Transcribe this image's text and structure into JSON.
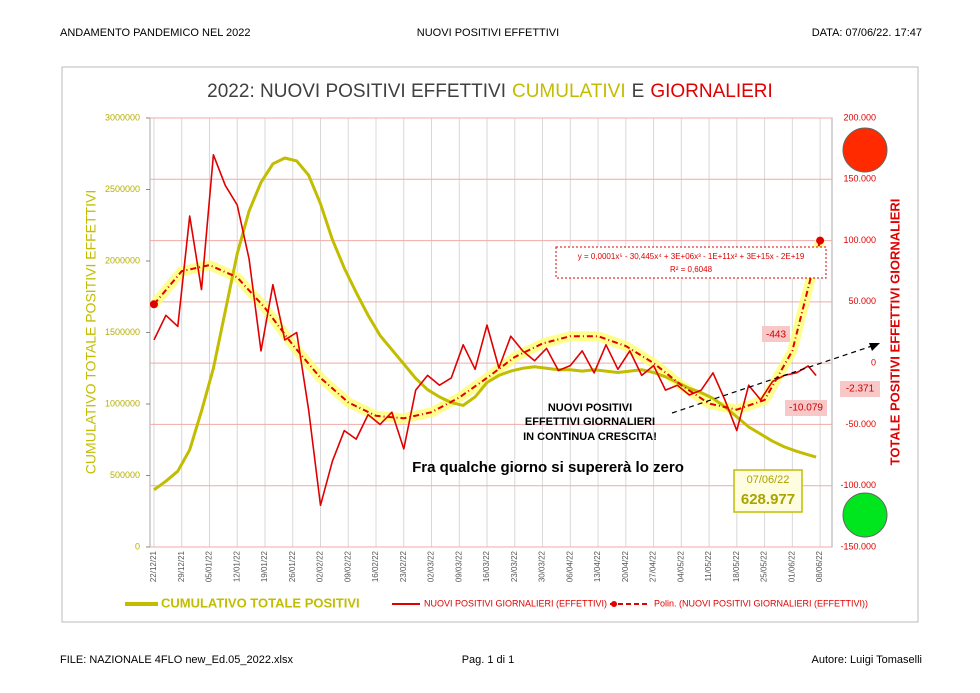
{
  "header": {
    "left": "ANDAMENTO PANDEMICO NEL 2022",
    "center": "NUOVI POSITIVI EFFETTIVI",
    "right": "DATA: 07/06/22. 17:47"
  },
  "footer": {
    "left": "FILE: NAZIONALE 4FLO new_Ed.05_2022.xlsx",
    "center": "Pag.  1  di  1",
    "right": "Autore: Luigi Tomaselli"
  },
  "chart_data": {
    "type": "line",
    "title_parts": [
      {
        "text": "2022: NUOVI POSITIVI  EFFETTIVI",
        "color": "#404040"
      },
      {
        "text": "CUMULATIVI",
        "color": "#c2bd00"
      },
      {
        "text": "E",
        "color": "#404040"
      },
      {
        "text": "GIORNALIERI",
        "color": "#e00000"
      }
    ],
    "y_label": "CUMULATIVO TOTALE POSITIVI EFFETTIVI",
    "y2_label": "TOTALE POSITIVI  EFFETTIVI GIORNALIERI",
    "x": [
      "22/12/21",
      "25/12/21",
      "28/12/21",
      "31/12/21",
      "03/01/22",
      "06/01/22",
      "09/01/22",
      "12/01/22",
      "15/01/22",
      "18/01/22",
      "21/01/22",
      "24/01/22",
      "27/01/22",
      "30/01/22",
      "02/02/22",
      "05/02/22",
      "08/02/22",
      "11/02/22",
      "14/02/22",
      "17/02/22",
      "20/02/22",
      "23/02/22",
      "26/02/22",
      "01/03/22",
      "04/03/22",
      "07/03/22",
      "10/03/22",
      "13/03/22",
      "16/03/22",
      "19/03/22",
      "22/03/22",
      "25/03/22",
      "28/03/22",
      "31/03/22",
      "03/04/22",
      "06/04/22",
      "09/04/22",
      "12/04/22",
      "15/04/22",
      "18/04/22",
      "21/04/22",
      "24/04/22",
      "27/04/22",
      "30/04/22",
      "03/05/22",
      "06/05/22",
      "09/05/22",
      "12/05/22",
      "15/05/22",
      "18/05/22",
      "21/05/22",
      "24/05/22",
      "27/05/22",
      "30/05/22",
      "02/06/22",
      "05/06/22",
      "07/06/22"
    ],
    "xlim": [
      "21/12/21",
      "11/06/22"
    ],
    "xticks": [
      "22/12/21",
      "29/12/21",
      "05/01/22",
      "12/01/22",
      "19/01/22",
      "26/01/22",
      "02/02/22",
      "09/02/22",
      "16/02/22",
      "23/02/22",
      "02/03/22",
      "09/03/22",
      "16/03/22",
      "23/03/22",
      "30/03/22",
      "06/04/22",
      "13/04/22",
      "20/04/22",
      "27/04/22",
      "04/05/22",
      "11/05/22",
      "18/05/22",
      "25/05/22",
      "01/06/22",
      "08/06/22"
    ],
    "ylim": [
      0,
      3000000
    ],
    "yticks": [
      0,
      500000,
      1000000,
      1500000,
      2000000,
      2500000,
      3000000
    ],
    "y2lim": [
      -150000,
      200000
    ],
    "y2ticks": [
      {
        "value": -150000,
        "label": "-150.000"
      },
      {
        "value": -100000,
        "label": "-100.000"
      },
      {
        "value": -50000,
        "label": "-50.000"
      },
      0,
      {
        "value": 50000,
        "label": "50.000"
      },
      {
        "value": 100000,
        "label": "100.000"
      },
      {
        "value": 150000,
        "label": "150.000"
      },
      {
        "value": 200000,
        "label": "200.000"
      }
    ],
    "grid": true,
    "series": [
      {
        "name": "CUMULATIVO TOTALE POSITIVI",
        "color": "#c2bd00",
        "axis": "y",
        "values": [
          400000,
          460000,
          530000,
          680000,
          950000,
          1250000,
          1650000,
          2050000,
          2350000,
          2550000,
          2680000,
          2720000,
          2700000,
          2600000,
          2400000,
          2150000,
          1950000,
          1780000,
          1620000,
          1480000,
          1380000,
          1280000,
          1180000,
          1100000,
          1050000,
          1010000,
          990000,
          1050000,
          1150000,
          1200000,
          1230000,
          1250000,
          1260000,
          1250000,
          1240000,
          1240000,
          1230000,
          1240000,
          1230000,
          1220000,
          1230000,
          1240000,
          1220000,
          1190000,
          1150000,
          1110000,
          1080000,
          1040000,
          980000,
          910000,
          840000,
          790000,
          740000,
          700000,
          670000,
          645000,
          628977
        ],
        "last_value_label": "628.977"
      },
      {
        "name": "NUOVI POSITIVI GIORNALIERI (EFFETTIVI)",
        "color": "#e00000",
        "axis": "y2",
        "values": [
          19000,
          39000,
          30000,
          120000,
          60000,
          170000,
          145000,
          129000,
          85000,
          10000,
          64000,
          19000,
          25000,
          -38000,
          -116000,
          -80000,
          -55000,
          -62000,
          -42000,
          -50000,
          -40000,
          -70000,
          -22000,
          -10000,
          -18000,
          -12000,
          15000,
          -5000,
          31000,
          -4000,
          22000,
          10000,
          2000,
          12000,
          -6000,
          -2000,
          10000,
          -8000,
          15000,
          -5000,
          10000,
          -10000,
          -2000,
          -22000,
          -18000,
          -26000,
          -22000,
          -8000,
          -30000,
          -55000,
          -18000,
          -30000,
          -15000,
          -10000,
          -8000,
          -2371,
          -10079
        ]
      },
      {
        "name": "Polin. (NUOVI POSITIVI GIORNALIERI (EFFETTIVI))",
        "color": "#e00000",
        "axis": "y2",
        "x": [
          "22/12/21",
          "29/12/21",
          "05/01/22",
          "12/01/22",
          "19/01/22",
          "26/01/22",
          "02/02/22",
          "09/02/22",
          "16/02/22",
          "23/02/22",
          "02/03/22",
          "09/03/22",
          "16/03/22",
          "23/03/22",
          "30/03/22",
          "06/04/22",
          "13/04/22",
          "20/04/22",
          "27/04/22",
          "04/05/22",
          "11/05/22",
          "18/05/22",
          "25/05/22",
          "01/06/22",
          "08/06/22"
        ],
        "values": [
          48000,
          75000,
          80000,
          70000,
          45000,
          15000,
          -12000,
          -32000,
          -43000,
          -45000,
          -40000,
          -28000,
          -12000,
          5000,
          16000,
          22000,
          22000,
          14000,
          0,
          -18000,
          -33000,
          -38000,
          -30000,
          10000,
          100000
        ]
      }
    ],
    "formula": "y = 0,0001x⁵ - 30,445x⁴ + 3E+06x³ - 1E+11x² + 3E+15x - 2E+19",
    "r_squared": "R² = 0,6048",
    "annotations": [
      "-443",
      "-2.371",
      "-10.079"
    ],
    "callout": [
      "NUOVI POSITIVI",
      "EFFETTIVI GIORNALIERI",
      "IN CONTINUA CRESCITA!"
    ],
    "note": "Fra  qualche giorno si supererà lo zero"
  }
}
